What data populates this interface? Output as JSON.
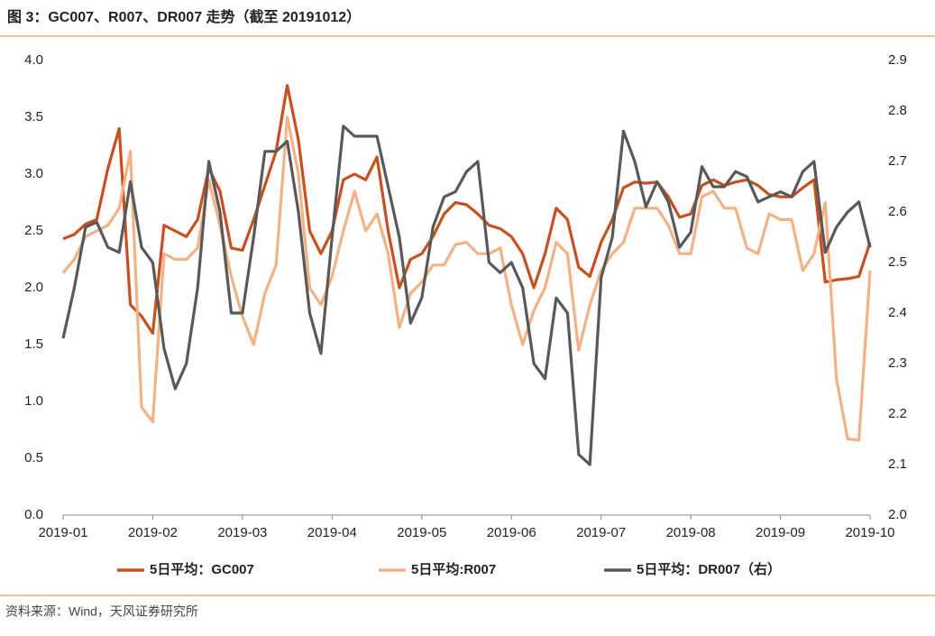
{
  "chart_data": {
    "type": "line",
    "title": "图 3：GC007、R007、DR007 走势（截至 20191012）",
    "categories": [
      "2019-01",
      null,
      null,
      null,
      null,
      null,
      null,
      null,
      "2019-02",
      null,
      null,
      null,
      null,
      null,
      null,
      null,
      "2019-03",
      null,
      null,
      null,
      null,
      null,
      null,
      null,
      "2019-04",
      null,
      null,
      null,
      null,
      null,
      null,
      null,
      "2019-05",
      null,
      null,
      null,
      null,
      null,
      null,
      null,
      "2019-06",
      null,
      null,
      null,
      null,
      null,
      null,
      null,
      "2019-07",
      null,
      null,
      null,
      null,
      null,
      null,
      null,
      "2019-08",
      null,
      null,
      null,
      null,
      null,
      null,
      null,
      "2019-09",
      null,
      null,
      null,
      null,
      null,
      null,
      null,
      "2019-10"
    ],
    "series": [
      {
        "name": "5日平均：GC007",
        "color": "#c8501e",
        "values": [
          2.43,
          2.47,
          2.56,
          2.6,
          3.05,
          3.4,
          1.85,
          1.75,
          1.6,
          2.55,
          2.5,
          2.45,
          2.6,
          3.05,
          2.85,
          2.35,
          2.33,
          2.6,
          2.9,
          3.2,
          3.78,
          3.3,
          2.5,
          2.3,
          2.5,
          2.95,
          3.0,
          2.95,
          3.15,
          2.5,
          2.0,
          2.25,
          2.3,
          2.45,
          2.65,
          2.75,
          2.73,
          2.65,
          2.55,
          2.52,
          2.45,
          2.3,
          2.0,
          2.3,
          2.7,
          2.6,
          2.18,
          2.1,
          2.4,
          2.6,
          2.88,
          2.93,
          2.92,
          2.93,
          2.8,
          2.62,
          2.65,
          2.9,
          2.95,
          2.9,
          2.93,
          2.95,
          2.9,
          2.82,
          2.8,
          2.8,
          2.88,
          2.95,
          2.05,
          2.07,
          2.08,
          2.1,
          2.4
        ]
      },
      {
        "name": "5日平均:R007",
        "color": "#f4b183",
        "values": [
          2.13,
          2.25,
          2.45,
          2.5,
          2.55,
          2.7,
          3.2,
          0.95,
          0.82,
          2.3,
          2.25,
          2.25,
          2.35,
          2.95,
          2.55,
          2.1,
          1.75,
          1.5,
          1.95,
          2.2,
          3.5,
          3.0,
          2.0,
          1.85,
          2.1,
          2.5,
          2.85,
          2.5,
          2.65,
          2.3,
          1.65,
          1.95,
          2.05,
          2.2,
          2.2,
          2.38,
          2.4,
          2.3,
          2.3,
          2.35,
          1.85,
          1.5,
          1.8,
          2.0,
          2.4,
          2.3,
          1.45,
          1.85,
          2.15,
          2.3,
          2.4,
          2.7,
          2.7,
          2.7,
          2.55,
          2.3,
          2.3,
          2.8,
          2.85,
          2.7,
          2.7,
          2.35,
          2.3,
          2.65,
          2.6,
          2.6,
          2.15,
          2.3,
          2.75,
          1.2,
          0.67,
          0.66,
          2.15
        ]
      },
      {
        "name": "5日平均：DR007（右）",
        "color": "#595959",
        "axis": "y2",
        "values": [
          2.35,
          2.45,
          2.57,
          2.58,
          2.53,
          2.52,
          2.66,
          2.53,
          2.5,
          2.33,
          2.25,
          2.3,
          2.45,
          2.7,
          2.6,
          2.4,
          2.4,
          2.55,
          2.72,
          2.72,
          2.74,
          2.6,
          2.4,
          2.32,
          2.55,
          2.77,
          2.75,
          2.75,
          2.75,
          2.65,
          2.55,
          2.38,
          2.43,
          2.57,
          2.63,
          2.64,
          2.68,
          2.7,
          2.5,
          2.48,
          2.5,
          2.45,
          2.3,
          2.27,
          2.43,
          2.4,
          2.12,
          2.1,
          2.47,
          2.55,
          2.76,
          2.7,
          2.61,
          2.66,
          2.62,
          2.53,
          2.56,
          2.69,
          2.65,
          2.65,
          2.68,
          2.67,
          2.62,
          2.63,
          2.64,
          2.63,
          2.68,
          2.7,
          2.52,
          2.57,
          2.6,
          2.62,
          2.53
        ]
      }
    ],
    "ylim": [
      0,
      4
    ],
    "yticks": [
      {
        "value": 0,
        "label": "0.0"
      },
      0.5,
      {
        "value": 1,
        "label": "1.0"
      },
      1.5,
      {
        "value": 2,
        "label": "2.0"
      },
      2.5,
      {
        "value": 3,
        "label": "3.0"
      },
      3.5,
      {
        "value": 4,
        "label": "4.0"
      }
    ],
    "y2lim": [
      2,
      2.9
    ],
    "y2ticks": [
      {
        "value": 2,
        "label": "2.0"
      },
      2.1,
      2.2,
      2.3,
      2.4,
      2.5,
      2.6,
      2.7,
      2.8,
      2.9
    ],
    "legend": "bottom",
    "grid": false
  },
  "source": "资料来源：Wind，天风证券研究所"
}
